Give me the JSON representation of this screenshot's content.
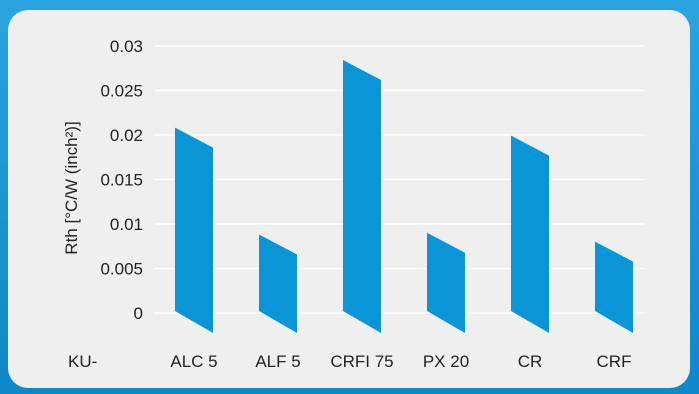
{
  "chart_data": {
    "type": "bar",
    "ylabel": "Rth [°C/W (inch²)]",
    "category_prefix": "KU-",
    "categories": [
      "ALC 5",
      "ALF 5",
      "CRFI 75",
      "PX 20",
      "CR",
      "CRF"
    ],
    "values": [
      0.0197,
      0.0077,
      0.0273,
      0.0079,
      0.0188,
      0.0069
    ],
    "yticks": [
      "0.03",
      "0.025",
      "0.02",
      "0.015",
      "0.01",
      "0.005",
      "0"
    ],
    "ylim": [
      0,
      0.03
    ],
    "grid": true,
    "bar_color": "#0a96d6"
  }
}
